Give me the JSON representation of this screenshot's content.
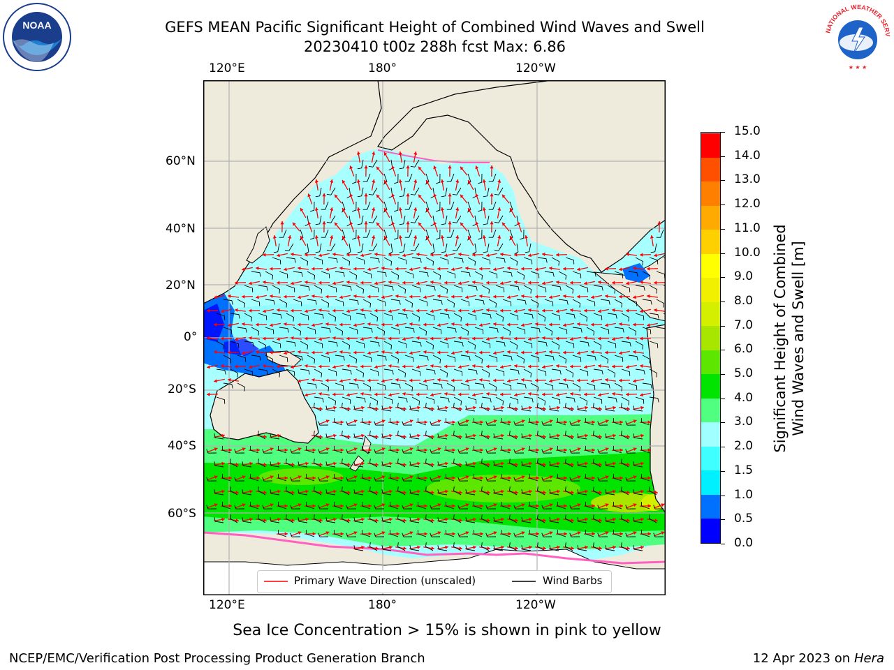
{
  "header": {
    "title_line1": "GEFS MEAN Pacific Significant Height of Combined Wind Waves and Swell",
    "title_line2": "20230410 t00z 288h fcst   Max: 6.86"
  },
  "logos": {
    "noaa_text": "NOAA",
    "noaa_ring_text": "NATIONAL OCEANIC AND ATMOSPHERIC ADMINISTRATION · U.S. DEPARTMENT OF COMMERCE",
    "nws_ring_text": "NATIONAL WEATHER SERVICE"
  },
  "map": {
    "lon_ticks_top": [
      "120°E",
      "180°",
      "120°W"
    ],
    "lon_ticks_bottom": [
      "120°E",
      "180°",
      "120°W"
    ],
    "lat_ticks": [
      "60°N",
      "40°N",
      "20°N",
      "0°",
      "20°S",
      "40°S",
      "60°S"
    ],
    "land_color": "#efebdc",
    "gridline_color": "#b0b0b0",
    "arrow_color": "#ff0000",
    "barb_color": "#000000"
  },
  "legend": {
    "wave_direction_label": "Primary Wave Direction (unscaled)",
    "wind_barbs_label": "Wind Barbs"
  },
  "colorbar": {
    "label_line1": "Significant Height of Combined",
    "label_line2": "Wind Waves and Swell [m]",
    "ticks": [
      "15.0",
      "14.0",
      "13.0",
      "12.0",
      "11.0",
      "10.0",
      "9.0",
      "8.0",
      "7.0",
      "6.0",
      "5.0",
      "4.0",
      "3.0",
      "2.0",
      "1.5",
      "1.0",
      "0.5",
      "0.0"
    ],
    "colors_bottom_to_top": [
      "#0000ff",
      "#0070ff",
      "#00f0ff",
      "#40ffff",
      "#a0ffff",
      "#50ff80",
      "#00e400",
      "#5ce600",
      "#a8e600",
      "#d4f000",
      "#f0f000",
      "#ffff00",
      "#ffd000",
      "#ffaa00",
      "#ff8000",
      "#ff5000",
      "#ff0000"
    ]
  },
  "notes": {
    "sea_ice": "Sea Ice Concentration > 15% is shown in pink to yellow"
  },
  "footer": {
    "left": "NCEP/EMC/Verification Post Processing Product Generation Branch",
    "right_date": "12 Apr 2023 on ",
    "right_machine": "Hera"
  }
}
